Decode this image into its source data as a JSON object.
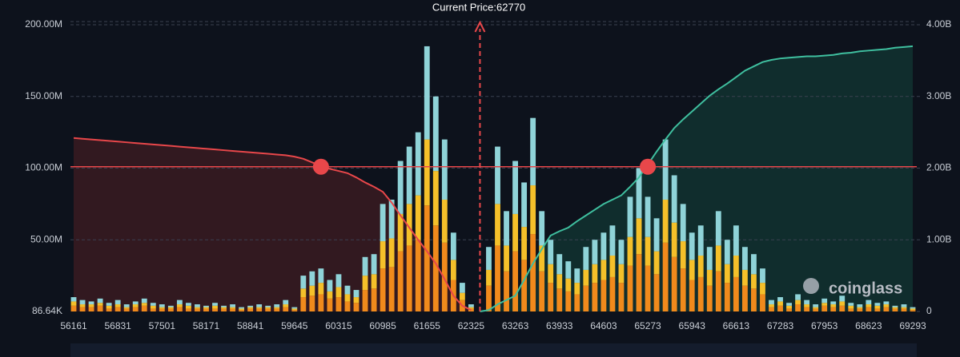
{
  "chart_data": {
    "type": "stacked-bar-cumulative",
    "annotation": "Current Price:62770",
    "watermark": "coinglass",
    "categories": [
      "56161",
      null,
      null,
      null,
      null,
      "56831",
      null,
      null,
      null,
      null,
      "57501",
      null,
      null,
      null,
      null,
      "58171",
      null,
      null,
      null,
      null,
      "58841",
      null,
      null,
      null,
      null,
      "59645",
      null,
      null,
      null,
      null,
      "60315",
      null,
      null,
      null,
      null,
      "60985",
      null,
      null,
      null,
      null,
      "61655",
      null,
      null,
      null,
      null,
      "62325",
      null,
      null,
      null,
      null,
      "63263",
      null,
      null,
      null,
      null,
      "63933",
      null,
      null,
      null,
      null,
      "64603",
      null,
      null,
      null,
      null,
      "65273",
      null,
      null,
      null,
      null,
      "65943",
      null,
      null,
      null,
      null,
      "66613",
      null,
      null,
      null,
      null,
      "67283",
      null,
      null,
      null,
      null,
      "67953",
      null,
      null,
      null,
      null,
      "68623",
      null,
      null,
      null,
      null,
      "69293"
    ],
    "series": [
      {
        "color": "#f08a1c",
        "values": [
          4,
          3,
          3,
          4,
          2,
          3,
          2,
          3,
          4,
          2,
          2,
          2,
          3,
          2,
          2,
          2,
          2,
          2,
          2,
          1,
          2,
          2,
          2,
          2,
          3,
          1,
          10,
          11,
          12,
          9,
          10,
          7,
          6,
          15,
          16,
          30,
          31,
          42,
          46,
          50,
          74,
          60,
          48,
          22,
          8,
          2,
          0,
          18,
          46,
          28,
          42,
          36,
          54,
          28,
          20,
          16,
          14,
          12,
          18,
          20,
          22,
          24,
          20,
          32,
          40,
          32,
          26,
          48,
          38,
          30,
          22,
          24,
          18,
          28,
          20,
          24,
          18,
          16,
          12,
          3,
          4,
          2,
          5,
          3,
          2,
          4,
          3,
          4,
          2,
          2,
          3,
          2,
          3,
          2,
          2,
          1
        ]
      },
      {
        "color": "#f5c02a",
        "values": [
          3,
          2,
          2,
          2,
          2,
          2,
          1,
          2,
          2,
          2,
          1,
          1,
          2,
          2,
          1,
          1,
          2,
          1,
          1,
          1,
          1,
          1,
          1,
          1,
          2,
          1,
          6,
          7,
          8,
          5,
          7,
          5,
          4,
          10,
          10,
          19,
          20,
          26,
          29,
          31,
          46,
          38,
          30,
          14,
          5,
          1,
          0,
          11,
          29,
          18,
          26,
          23,
          34,
          18,
          13,
          10,
          9,
          8,
          11,
          13,
          14,
          15,
          13,
          20,
          25,
          20,
          16,
          30,
          24,
          19,
          14,
          15,
          11,
          18,
          13,
          15,
          11,
          10,
          8,
          2,
          3,
          2,
          3,
          2,
          1,
          2,
          2,
          3,
          2,
          1,
          2,
          2,
          2,
          1,
          1,
          1
        ]
      },
      {
        "color": "#8fd3d8",
        "values": [
          3,
          3,
          2,
          3,
          2,
          3,
          2,
          2,
          3,
          2,
          2,
          1,
          3,
          2,
          2,
          1,
          2,
          1,
          2,
          1,
          1,
          2,
          1,
          2,
          3,
          1,
          9,
          10,
          10,
          8,
          9,
          6,
          5,
          13,
          14,
          26,
          27,
          37,
          40,
          44,
          65,
          52,
          42,
          19,
          7,
          2,
          0,
          16,
          40,
          24,
          37,
          31,
          47,
          24,
          17,
          14,
          12,
          10,
          16,
          17,
          19,
          21,
          17,
          28,
          35,
          28,
          23,
          42,
          33,
          26,
          19,
          21,
          16,
          24,
          17,
          21,
          16,
          14,
          10,
          3,
          3,
          2,
          4,
          3,
          2,
          3,
          2,
          4,
          2,
          2,
          3,
          2,
          2,
          1,
          2,
          1
        ]
      },
      {
        "color": "#e8474a",
        "axis": "y2",
        "line": true,
        "fill": "#3a1b21",
        "values": [
          2.42,
          2.41,
          2.4,
          2.39,
          2.38,
          2.37,
          2.36,
          2.35,
          2.34,
          2.33,
          2.32,
          2.31,
          2.3,
          2.29,
          2.28,
          2.27,
          2.26,
          2.25,
          2.24,
          2.23,
          2.22,
          2.21,
          2.2,
          2.19,
          2.18,
          2.16,
          2.13,
          2.08,
          2.03,
          1.99,
          1.96,
          1.93,
          1.87,
          1.8,
          1.74,
          1.67,
          1.52,
          1.34,
          1.17,
          1.0,
          0.84,
          0.67,
          0.45,
          0.22,
          0.08,
          0.02,
          null,
          null,
          null,
          null,
          null,
          null,
          null,
          null,
          null,
          null,
          null,
          null,
          null,
          null,
          null,
          null,
          null,
          null,
          null,
          null,
          null,
          null,
          null,
          null,
          null,
          null,
          null,
          null,
          null,
          null,
          null,
          null,
          null,
          null,
          null,
          null,
          null,
          null,
          null,
          null,
          null,
          null,
          null,
          null,
          null,
          null,
          null,
          null,
          null,
          null
        ]
      },
      {
        "color": "#3fbf9f",
        "axis": "y2",
        "line": true,
        "fill": "#123330",
        "values": [
          null,
          null,
          null,
          null,
          null,
          null,
          null,
          null,
          null,
          null,
          null,
          null,
          null,
          null,
          null,
          null,
          null,
          null,
          null,
          null,
          null,
          null,
          null,
          null,
          null,
          null,
          null,
          null,
          null,
          null,
          null,
          null,
          null,
          null,
          null,
          null,
          null,
          null,
          null,
          null,
          null,
          null,
          null,
          null,
          null,
          null,
          0,
          0.02,
          0.1,
          0.16,
          0.22,
          0.44,
          0.67,
          0.87,
          1.06,
          1.12,
          1.17,
          1.26,
          1.34,
          1.42,
          1.5,
          1.56,
          1.62,
          1.74,
          1.87,
          2.05,
          2.23,
          2.4,
          2.56,
          2.68,
          2.79,
          2.9,
          3.01,
          3.1,
          3.18,
          3.27,
          3.36,
          3.42,
          3.48,
          3.51,
          3.53,
          3.54,
          3.55,
          3.56,
          3.56,
          3.57,
          3.58,
          3.6,
          3.61,
          3.63,
          3.64,
          3.65,
          3.66,
          3.68,
          3.69,
          3.7
        ]
      }
    ],
    "reference_line": {
      "axis": "y2",
      "value": 2.02,
      "color": "#e8474a"
    },
    "ylim": [
      0,
      200
    ],
    "yticks": [
      {
        "value": 0.08664,
        "label": "86.64K"
      },
      {
        "value": 50,
        "label": "50.00M"
      },
      {
        "value": 100,
        "label": "100.00M"
      },
      {
        "value": 150,
        "label": "150.00M"
      },
      {
        "value": 200,
        "label": "200.00M"
      }
    ],
    "y2lim": [
      0,
      4
    ],
    "y2ticks": [
      0,
      {
        "value": 1,
        "label": "1.00B"
      },
      {
        "value": 2,
        "label": "2.00B"
      },
      {
        "value": 3,
        "label": "3.00B"
      },
      {
        "value": 4,
        "label": "4.00B"
      }
    ],
    "grid": true
  }
}
